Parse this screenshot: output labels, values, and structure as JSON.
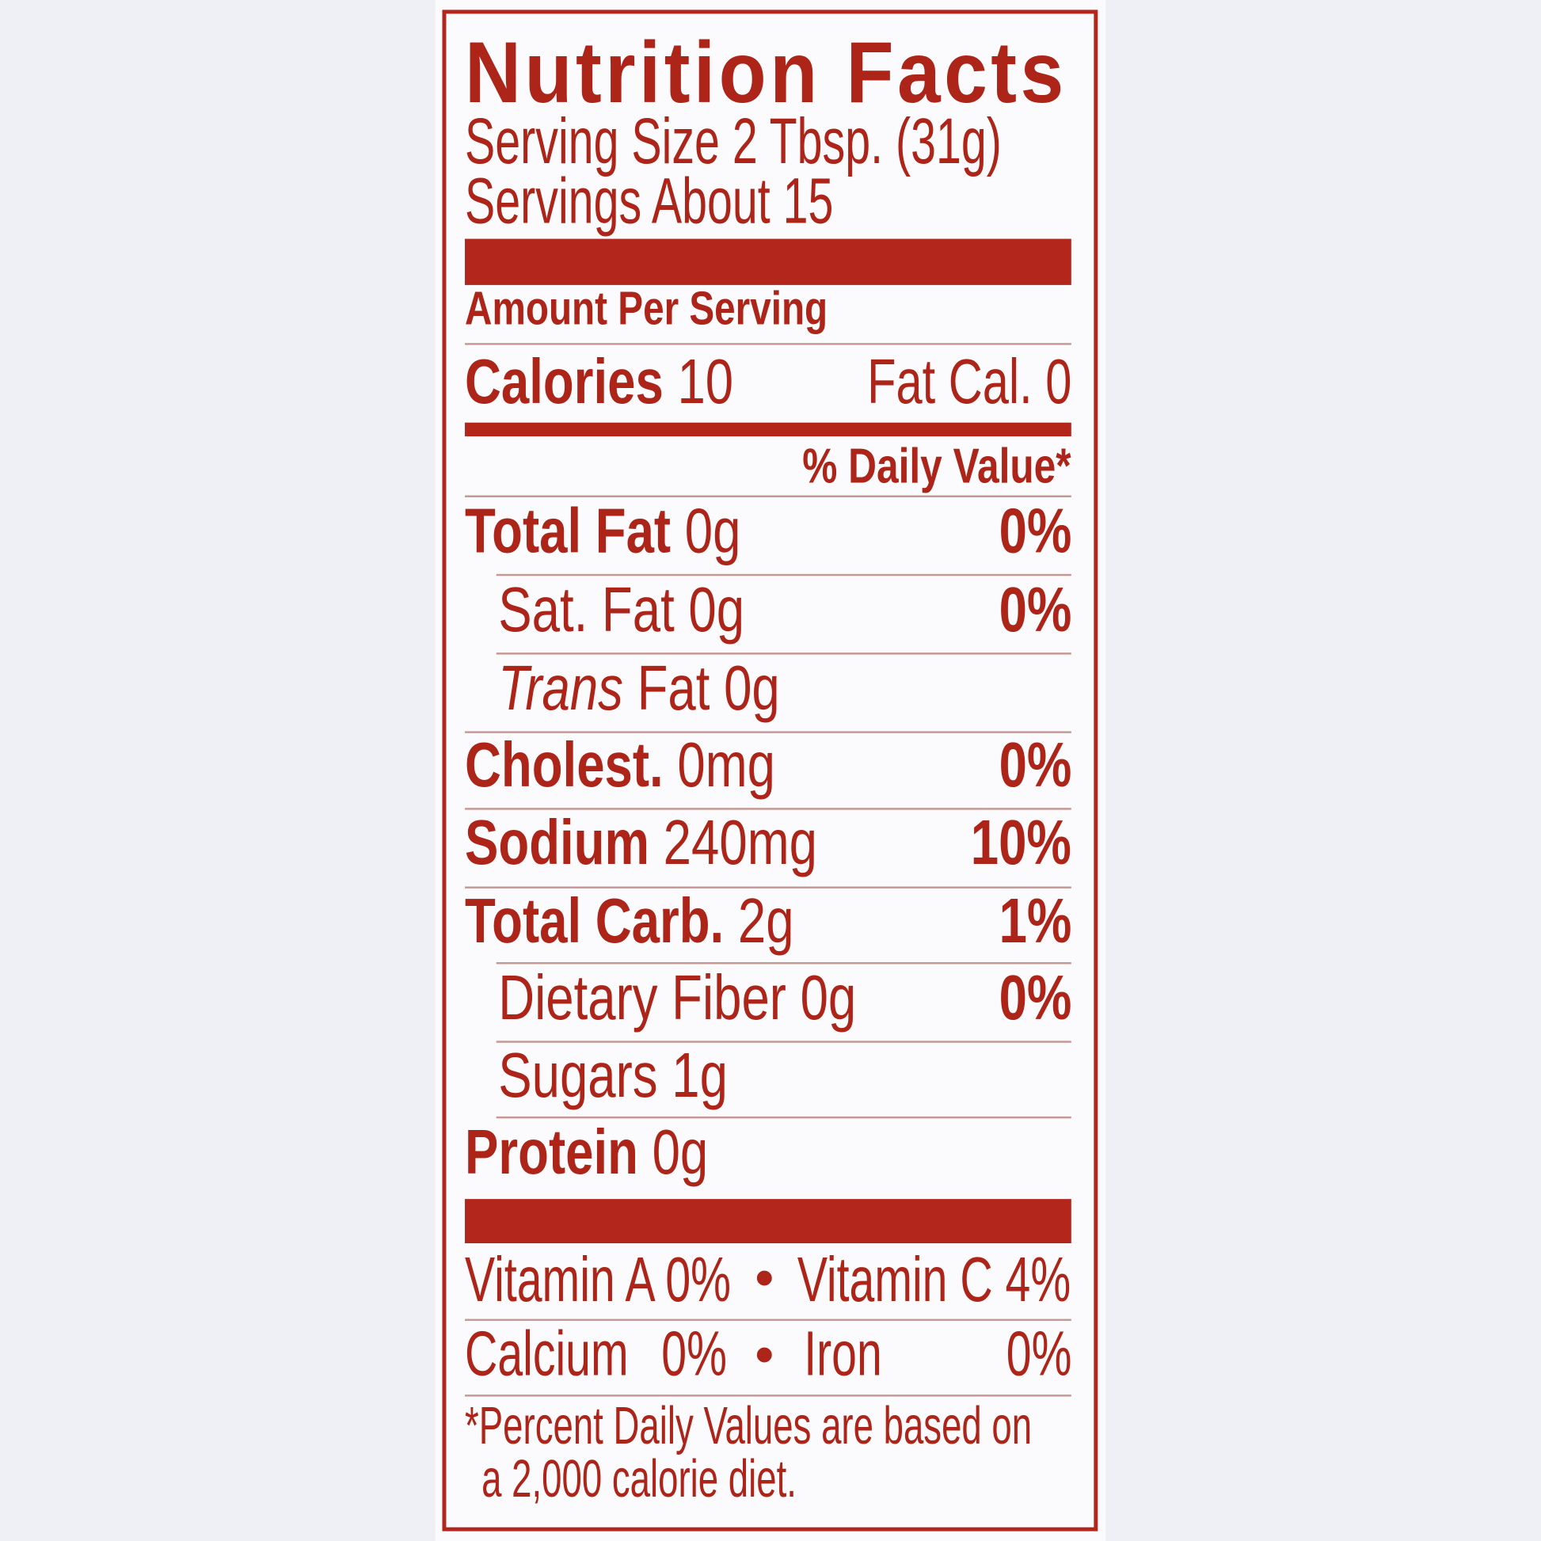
{
  "label": {
    "title": "Nutrition Facts",
    "serving_size": "Serving Size 2 Tbsp. (31g)",
    "servings": "Servings About 15",
    "amount_per_serving": "Amount Per Serving",
    "calories": {
      "label": "Calories",
      "value": "10"
    },
    "fat_calories": "Fat Cal. 0",
    "daily_value_header": "% Daily Value*",
    "nutrients": [
      {
        "label": "Total Fat",
        "amount": "0g",
        "dv": "0%"
      },
      {
        "label": "Sat. Fat",
        "amount": "0g",
        "dv": "0%"
      },
      {
        "label_italic": "Trans",
        "label": "Fat",
        "amount": "0g",
        "dv": ""
      },
      {
        "label": "Cholest.",
        "amount": "0mg",
        "dv": "0%"
      },
      {
        "label": "Sodium",
        "amount": "240mg",
        "dv": "10%"
      },
      {
        "label": "Total Carb.",
        "amount": "2g",
        "dv": "1%"
      },
      {
        "label": "Dietary Fiber",
        "amount": "0g",
        "dv": "0%"
      },
      {
        "label": "Sugars",
        "amount": "1g",
        "dv": ""
      },
      {
        "label": "Protein",
        "amount": "0g",
        "dv": ""
      }
    ],
    "vitamins": [
      {
        "name": "Vitamin A",
        "dv": "0%"
      },
      {
        "name": "Vitamin C",
        "dv": "4%"
      },
      {
        "name": "Calcium",
        "dv": "0%"
      },
      {
        "name": "Iron",
        "dv": "0%"
      }
    ],
    "bullet": "•",
    "footnote": [
      "*Percent Daily Values are based on",
      "a 2,000 calorie diet."
    ]
  },
  "colors": {
    "ink": "#ad2419",
    "background": "#eef0f5"
  }
}
